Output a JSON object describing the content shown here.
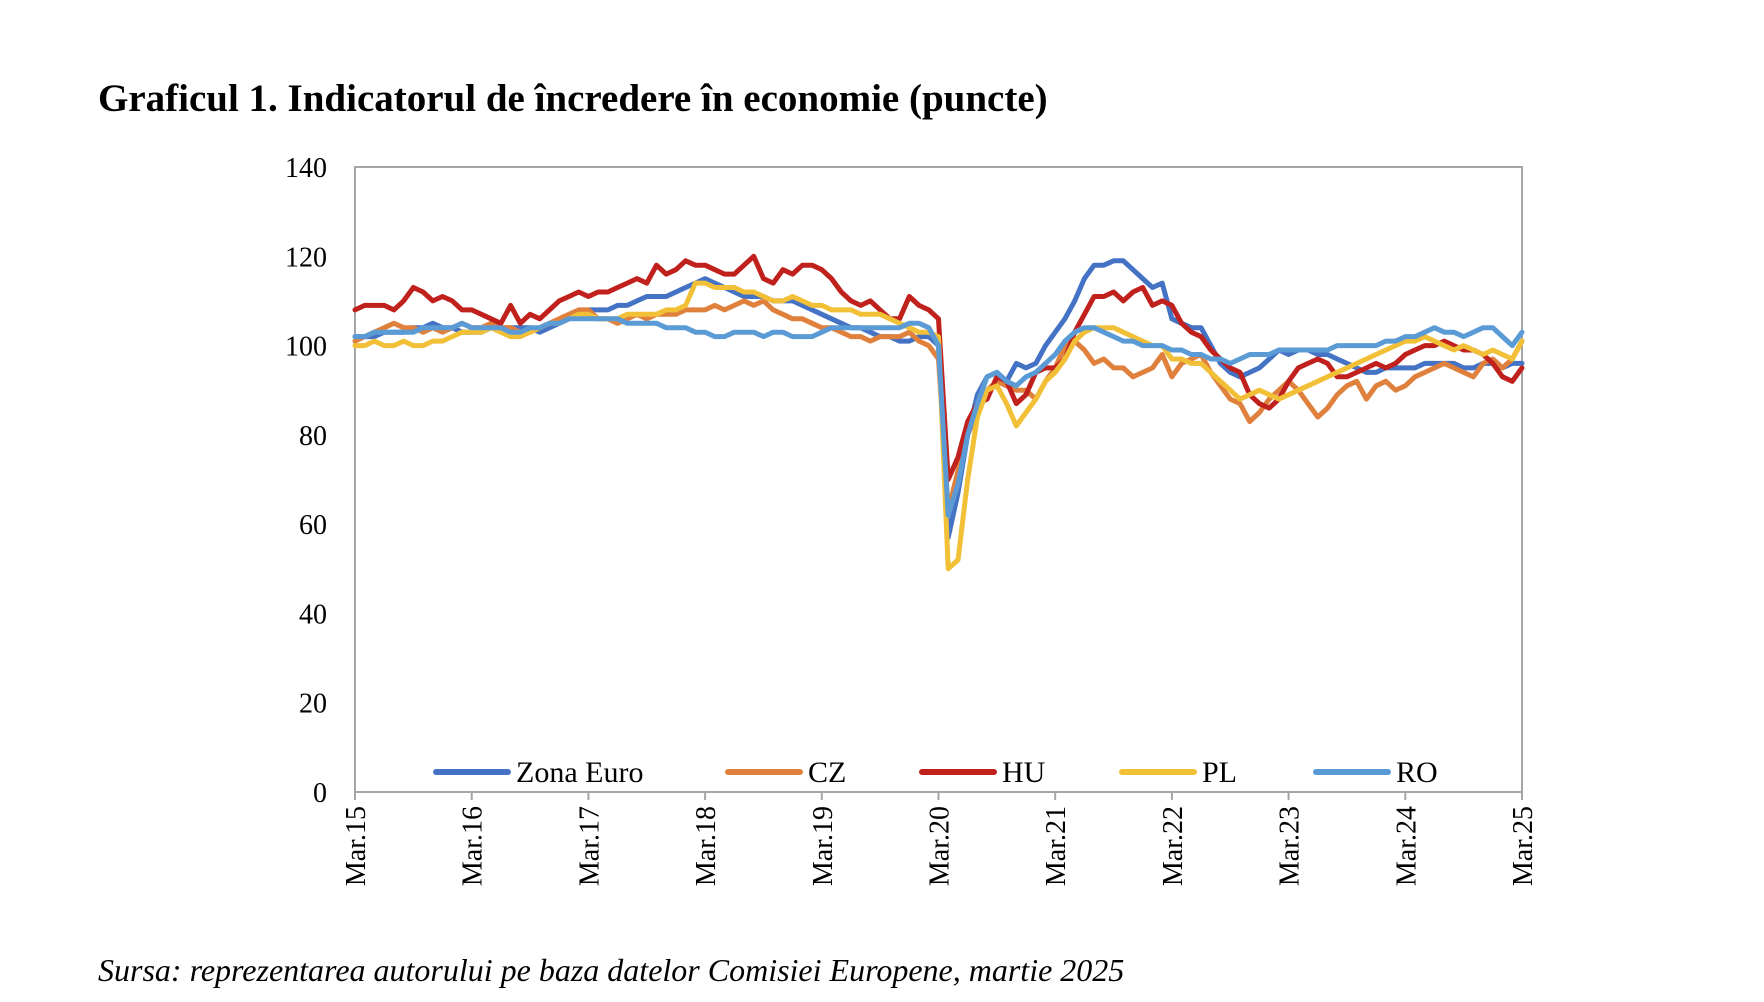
{
  "chart_data": {
    "type": "line",
    "title": "Graficul 1. Indicatorul de încredere în economie (puncte)",
    "source": "Sursa: reprezentarea autorului pe baza datelor Comisiei Europene, martie 2025",
    "xlabel": "",
    "ylabel": "",
    "ylim": [
      0,
      140
    ],
    "yticks": [
      0,
      20,
      40,
      60,
      80,
      100,
      120,
      140
    ],
    "xlim": [
      0,
      120
    ],
    "xtick_labels": [
      "Mar.15",
      "Mar.16",
      "Mar.17",
      "Mar.18",
      "Mar.19",
      "Mar.20",
      "Mar.21",
      "Mar.22",
      "Mar.23",
      "Mar.24",
      "Mar.25"
    ],
    "xtick_positions": [
      0,
      12,
      24,
      36,
      48,
      60,
      72,
      84,
      96,
      108,
      120
    ],
    "grid": false,
    "legend_position": "bottom-inside",
    "x_note": "monthly observations, Mar.15 to Mar.25",
    "series": [
      {
        "name": "Zona Euro",
        "color": "#4472c4",
        "values": [
          102,
          102,
          102,
          103,
          103,
          103,
          104,
          104,
          105,
          104,
          104,
          103,
          103,
          103,
          104,
          104,
          104,
          104,
          104,
          103,
          104,
          105,
          106,
          107,
          108,
          108,
          108,
          109,
          109,
          110,
          111,
          111,
          111,
          112,
          113,
          114,
          115,
          114,
          113,
          112,
          111,
          111,
          111,
          110,
          110,
          110,
          109,
          108,
          107,
          106,
          105,
          104,
          104,
          103,
          102,
          102,
          101,
          101,
          102,
          102,
          100,
          57,
          67,
          80,
          89,
          93,
          94,
          92,
          96,
          95,
          96,
          100,
          103,
          106,
          110,
          115,
          118,
          118,
          119,
          119,
          117,
          115,
          113,
          114,
          106,
          105,
          104,
          104,
          100,
          96,
          94,
          93,
          94,
          95,
          97,
          99,
          98,
          99,
          99,
          98,
          98,
          97,
          96,
          95,
          94,
          94,
          95,
          95,
          95,
          95,
          96,
          96,
          96,
          96,
          95,
          95,
          96,
          96,
          95,
          96,
          96
        ]
      },
      {
        "name": "CZ",
        "color": "#e0803d",
        "values": [
          101,
          102,
          103,
          104,
          105,
          104,
          104,
          103,
          104,
          103,
          104,
          105,
          104,
          104,
          105,
          104,
          104,
          103,
          103,
          104,
          105,
          106,
          107,
          108,
          108,
          106,
          106,
          105,
          106,
          107,
          106,
          107,
          107,
          107,
          108,
          108,
          108,
          109,
          108,
          109,
          110,
          109,
          110,
          108,
          107,
          106,
          106,
          105,
          104,
          104,
          103,
          102,
          102,
          101,
          102,
          102,
          102,
          103,
          101,
          100,
          97,
          63,
          72,
          80,
          85,
          90,
          92,
          91,
          90,
          90,
          88,
          92,
          95,
          100,
          101,
          99,
          96,
          97,
          95,
          95,
          93,
          94,
          95,
          98,
          93,
          96,
          97,
          98,
          94,
          91,
          88,
          87,
          83,
          85,
          88,
          90,
          92,
          90,
          87,
          84,
          86,
          89,
          91,
          92,
          88,
          91,
          92,
          90,
          91,
          93,
          94,
          95,
          96,
          95,
          94,
          93,
          96,
          97,
          95,
          97,
          101
        ]
      },
      {
        "name": "HU",
        "color": "#c0211c",
        "values": [
          108,
          109,
          109,
          109,
          108,
          110,
          113,
          112,
          110,
          111,
          110,
          108,
          108,
          107,
          106,
          105,
          109,
          105,
          107,
          106,
          108,
          110,
          111,
          112,
          111,
          112,
          112,
          113,
          114,
          115,
          114,
          118,
          116,
          117,
          119,
          118,
          118,
          117,
          116,
          116,
          118,
          120,
          115,
          114,
          117,
          116,
          118,
          118,
          117,
          115,
          112,
          110,
          109,
          110,
          108,
          106,
          106,
          111,
          109,
          108,
          106,
          70,
          75,
          83,
          87,
          88,
          93,
          92,
          87,
          89,
          94,
          95,
          95,
          97,
          103,
          107,
          111,
          111,
          112,
          110,
          112,
          113,
          109,
          110,
          109,
          105,
          103,
          102,
          99,
          97,
          95,
          94,
          89,
          87,
          86,
          88,
          92,
          95,
          96,
          97,
          96,
          93,
          93,
          94,
          95,
          96,
          95,
          96,
          98,
          99,
          100,
          100,
          101,
          100,
          99,
          99,
          98,
          96,
          93,
          92,
          95
        ]
      },
      {
        "name": "PL",
        "color": "#f2c037",
        "values": [
          100,
          100,
          101,
          100,
          100,
          101,
          100,
          100,
          101,
          101,
          102,
          103,
          103,
          103,
          104,
          103,
          102,
          102,
          103,
          104,
          105,
          105,
          106,
          107,
          107,
          106,
          106,
          106,
          107,
          107,
          107,
          107,
          108,
          108,
          109,
          114,
          114,
          113,
          113,
          113,
          112,
          112,
          111,
          110,
          110,
          111,
          110,
          109,
          109,
          108,
          108,
          108,
          107,
          107,
          107,
          106,
          105,
          104,
          103,
          103,
          102,
          50,
          52,
          70,
          84,
          90,
          91,
          87,
          82,
          85,
          88,
          92,
          94,
          97,
          101,
          103,
          104,
          104,
          104,
          103,
          102,
          101,
          100,
          100,
          97,
          97,
          96,
          96,
          94,
          92,
          90,
          88,
          89,
          90,
          89,
          88,
          89,
          90,
          91,
          92,
          93,
          94,
          95,
          96,
          97,
          98,
          99,
          100,
          101,
          101,
          102,
          101,
          100,
          99,
          100,
          99,
          98,
          99,
          98,
          97,
          101
        ]
      },
      {
        "name": "RO",
        "color": "#5b9bd5",
        "values": [
          102,
          102,
          103,
          103,
          103,
          103,
          103,
          104,
          104,
          104,
          104,
          105,
          104,
          104,
          104,
          104,
          103,
          103,
          104,
          104,
          105,
          105,
          106,
          106,
          106,
          106,
          106,
          106,
          105,
          105,
          105,
          105,
          104,
          104,
          104,
          103,
          103,
          102,
          102,
          103,
          103,
          103,
          102,
          103,
          103,
          102,
          102,
          102,
          103,
          104,
          104,
          104,
          104,
          104,
          104,
          104,
          104,
          105,
          105,
          104,
          100,
          62,
          69,
          80,
          87,
          93,
          94,
          92,
          91,
          93,
          94,
          96,
          98,
          101,
          103,
          104,
          104,
          103,
          102,
          101,
          101,
          100,
          100,
          100,
          99,
          99,
          98,
          98,
          97,
          97,
          96,
          97,
          98,
          98,
          98,
          99,
          99,
          99,
          99,
          99,
          99,
          100,
          100,
          100,
          100,
          100,
          101,
          101,
          102,
          102,
          103,
          104,
          103,
          103,
          102,
          103,
          104,
          104,
          102,
          100,
          103
        ]
      }
    ]
  }
}
